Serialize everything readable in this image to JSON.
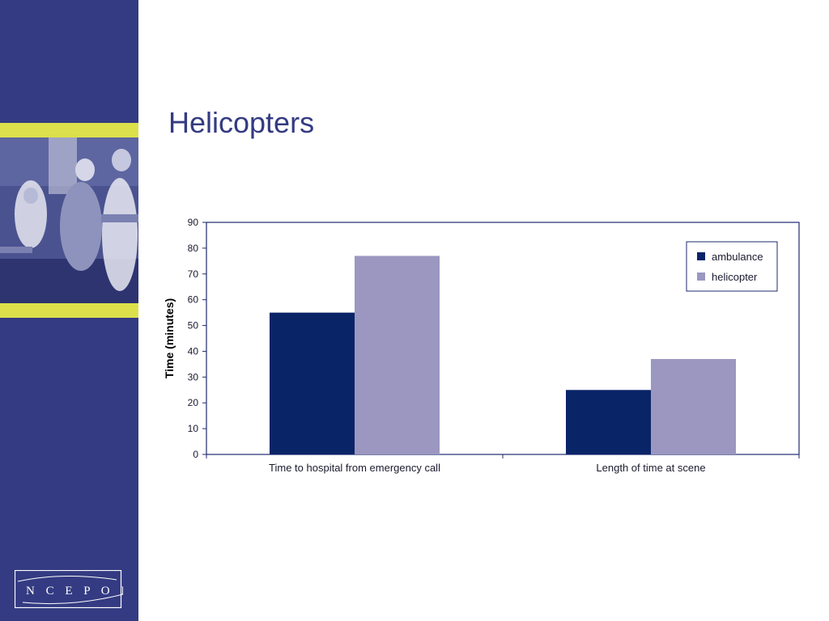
{
  "slide": {
    "title": "Helicopters",
    "logo_text": "NCEPOD"
  },
  "colors": {
    "sidebar": "#343B82",
    "accent_stripe": "#DCE04A",
    "ambulance": "#0A2468",
    "helicopter": "#9B97C0",
    "axis": "#1F2A6E"
  },
  "chart_data": {
    "type": "bar",
    "title": "",
    "xlabel": "",
    "ylabel": "Time (minutes)",
    "ylim": [
      0,
      90
    ],
    "yticks": [
      0,
      10,
      20,
      30,
      40,
      50,
      60,
      70,
      80,
      90
    ],
    "categories": [
      "Time to hospital from emergency call",
      "Length of time at scene"
    ],
    "series": [
      {
        "name": "ambulance",
        "values": [
          55,
          25
        ]
      },
      {
        "name": "helicopter",
        "values": [
          77,
          37
        ]
      }
    ],
    "legend": "top-right",
    "grid": false
  }
}
